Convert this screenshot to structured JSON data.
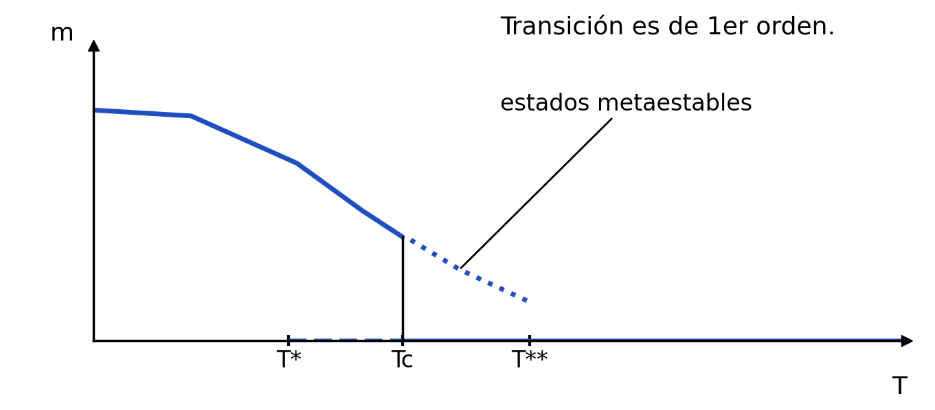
{
  "chart_data": {
    "type": "line",
    "x_label": "T",
    "y_label": "m",
    "annotations": [
      "Transición es de 1er orden.",
      "estados metaestables"
    ],
    "xlim": [
      0,
      10
    ],
    "ylim": [
      0,
      10
    ],
    "xticks": [
      {
        "value": 2.4,
        "label": "T*"
      },
      {
        "value": 3.8,
        "label": "Tc"
      },
      {
        "value": 5.36,
        "label": "T**"
      }
    ],
    "yticks": [],
    "grid": false,
    "series": [
      {
        "color": "#1f4fbf",
        "line_style": "solid",
        "x": [
          0,
          1.2,
          2.5,
          3.3,
          3.8
        ],
        "values": [
          7.8,
          7.6,
          6.0,
          4.4,
          3.5
        ]
      },
      {
        "color": "#1f4fbf",
        "line_style": "dotted",
        "x": [
          3.9,
          4.5,
          5.36
        ],
        "values": [
          3.4,
          2.4,
          1.3
        ]
      },
      {
        "color": "#1f4fbf",
        "line_style": "solid",
        "x": [
          3.8,
          10
        ],
        "values": [
          0,
          0
        ]
      },
      {
        "color": "#1f4fbf",
        "line_style": "dashed",
        "x": [
          2.4,
          3.8
        ],
        "values": [
          0,
          0
        ]
      },
      {
        "color": "#000000",
        "line_style": "solid",
        "x": [
          3.8,
          3.8
        ],
        "values": [
          0,
          3.5
        ]
      }
    ]
  }
}
